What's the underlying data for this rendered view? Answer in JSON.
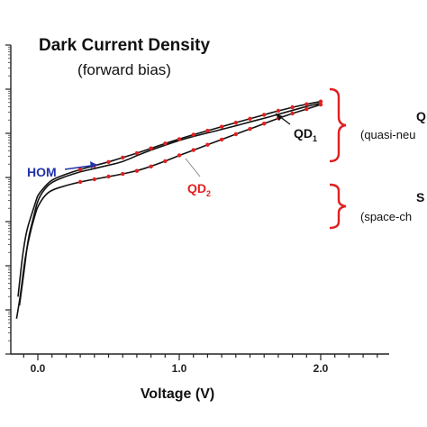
{
  "chart_data": {
    "type": "line",
    "title": "Dark Current Density",
    "subtitle": "(forward bias)",
    "xlabel": "Voltage (V)",
    "ylabel": "",
    "xlim": [
      -0.18,
      2.5
    ],
    "x_ticks": [
      {
        "value": 0.0,
        "label": "0.0"
      },
      {
        "value": 1.0,
        "label": "1.0"
      },
      {
        "value": 2.0,
        "label": "2.0"
      }
    ],
    "y_scale": "log",
    "grid": false,
    "series": [
      {
        "name": "HOM",
        "color": "#111111",
        "x": [
          -0.13,
          -0.1,
          -0.07,
          -0.03,
          0.0,
          0.05,
          0.1,
          0.2,
          0.3,
          0.4,
          0.5,
          0.6,
          0.7,
          0.8,
          0.9,
          1.0,
          1.1,
          1.2,
          1.3,
          1.4,
          1.5,
          1.6,
          1.7,
          1.8,
          1.9,
          2.0
        ],
        "y": [
          0.1,
          0.8,
          1.6,
          2.1,
          2.5,
          2.75,
          2.9,
          3.03,
          3.13,
          3.2,
          3.28,
          3.35,
          3.5,
          3.62,
          3.73,
          3.84,
          3.93,
          4.01,
          4.09,
          4.17,
          4.26,
          4.34,
          4.43,
          4.52,
          4.61,
          4.68
        ]
      },
      {
        "name": "QD1",
        "color": "#111111",
        "marker_color": "#e02020",
        "x": [
          -0.15,
          -0.12,
          -0.09,
          -0.05,
          -0.02,
          0.0,
          0.05,
          0.1,
          0.2,
          0.3,
          0.4,
          0.5,
          0.6,
          0.7,
          0.8,
          0.9,
          1.0,
          1.1,
          1.2,
          1.3,
          1.4,
          1.5,
          1.6,
          1.7,
          1.8,
          1.9,
          2.0
        ],
        "y": [
          -0.2,
          0.4,
          1.2,
          1.8,
          2.15,
          2.35,
          2.6,
          2.72,
          2.82,
          2.9,
          2.96,
          3.02,
          3.08,
          3.15,
          3.25,
          3.37,
          3.5,
          3.62,
          3.74,
          3.86,
          3.98,
          4.1,
          4.22,
          4.34,
          4.45,
          4.55,
          4.65
        ]
      },
      {
        "name": "QD2",
        "color": "#111111",
        "marker_color": "#e02020",
        "x": [
          -0.14,
          -0.11,
          -0.08,
          -0.04,
          -0.01,
          0.0,
          0.05,
          0.1,
          0.2,
          0.3,
          0.4,
          0.5,
          0.6,
          0.7,
          0.8,
          0.9,
          1.0,
          1.1,
          1.2,
          1.3,
          1.4,
          1.5,
          1.6,
          1.7,
          1.8,
          1.9,
          2.0
        ],
        "y": [
          0.3,
          1.2,
          1.8,
          2.2,
          2.5,
          2.6,
          2.8,
          2.95,
          3.08,
          3.18,
          3.27,
          3.35,
          3.45,
          3.55,
          3.66,
          3.77,
          3.87,
          3.97,
          4.06,
          4.15,
          4.24,
          4.33,
          4.42,
          4.51,
          4.59,
          4.66,
          4.72
        ]
      }
    ],
    "annotations": [
      {
        "id": "hom",
        "text": "HOM",
        "color": "#2233aa"
      },
      {
        "id": "qd1",
        "text": "QD",
        "sub": "1",
        "color": "#111111"
      },
      {
        "id": "qd2",
        "text": "QD",
        "sub": "2",
        "color": "#e02020"
      },
      {
        "id": "qn",
        "text": "Q",
        "desc": "(quasi-neu",
        "bracket_color": "#e02020"
      },
      {
        "id": "sc",
        "text": "S",
        "desc": "(space-ch",
        "bracket_color": "#e02020"
      }
    ]
  }
}
